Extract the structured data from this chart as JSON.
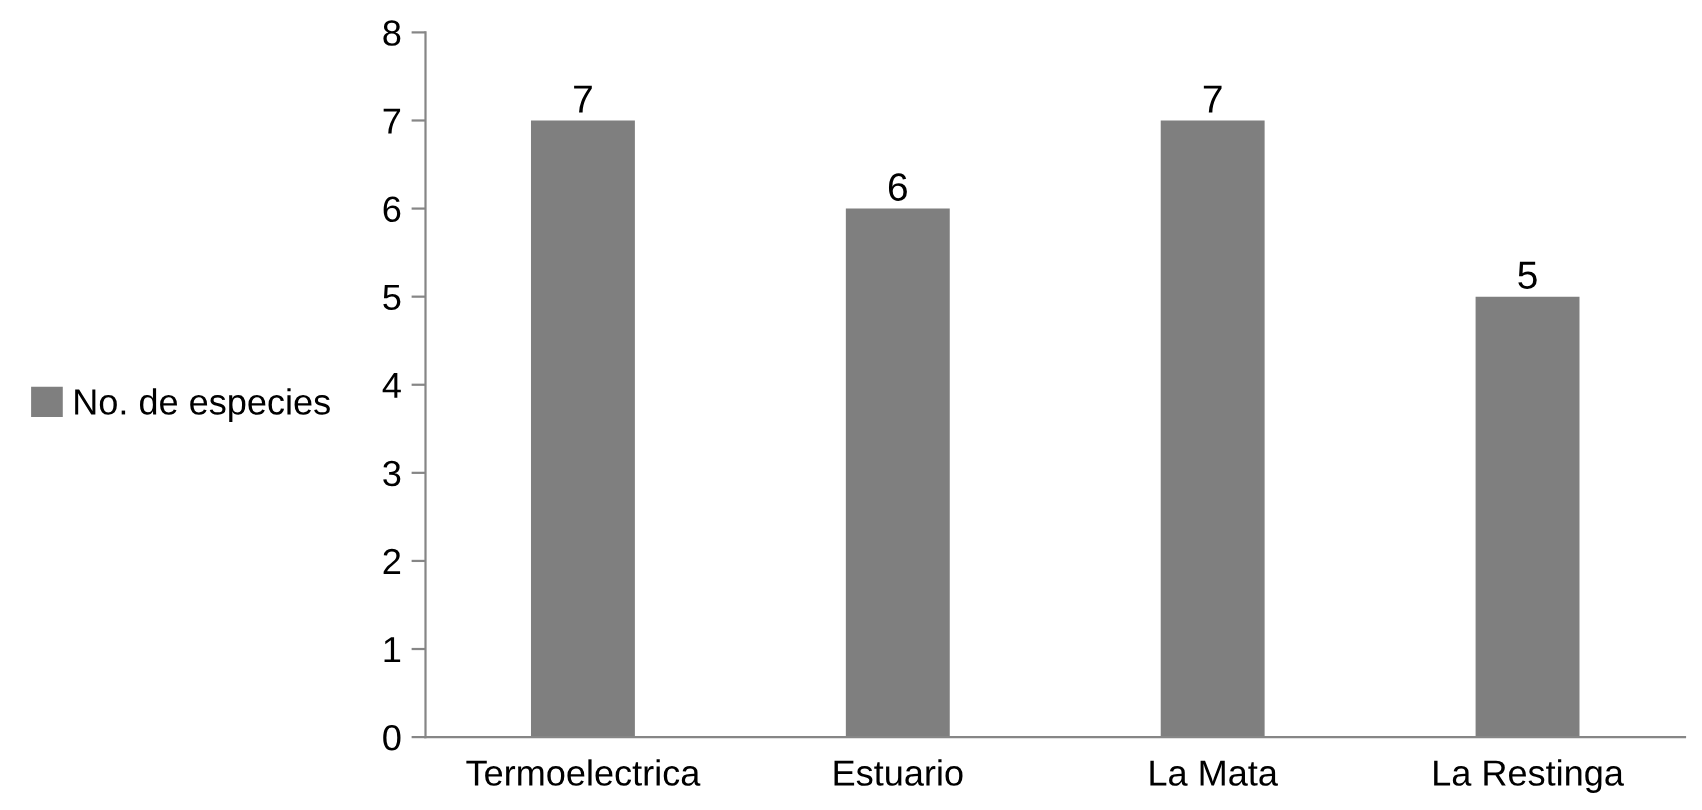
{
  "chart_data": {
    "type": "bar",
    "categories": [
      "Termoelectrica",
      "Estuario",
      "La Mata",
      "La Restinga"
    ],
    "series": [
      {
        "name": "No. de especies",
        "color": "#7f7f7f",
        "values": [
          7,
          6,
          7,
          5
        ]
      }
    ],
    "ylim": [
      0,
      8
    ],
    "yticks": [
      0,
      1,
      2,
      3,
      4,
      5,
      6,
      7,
      8
    ],
    "data_labels": true,
    "legend": "left",
    "grid": false
  }
}
